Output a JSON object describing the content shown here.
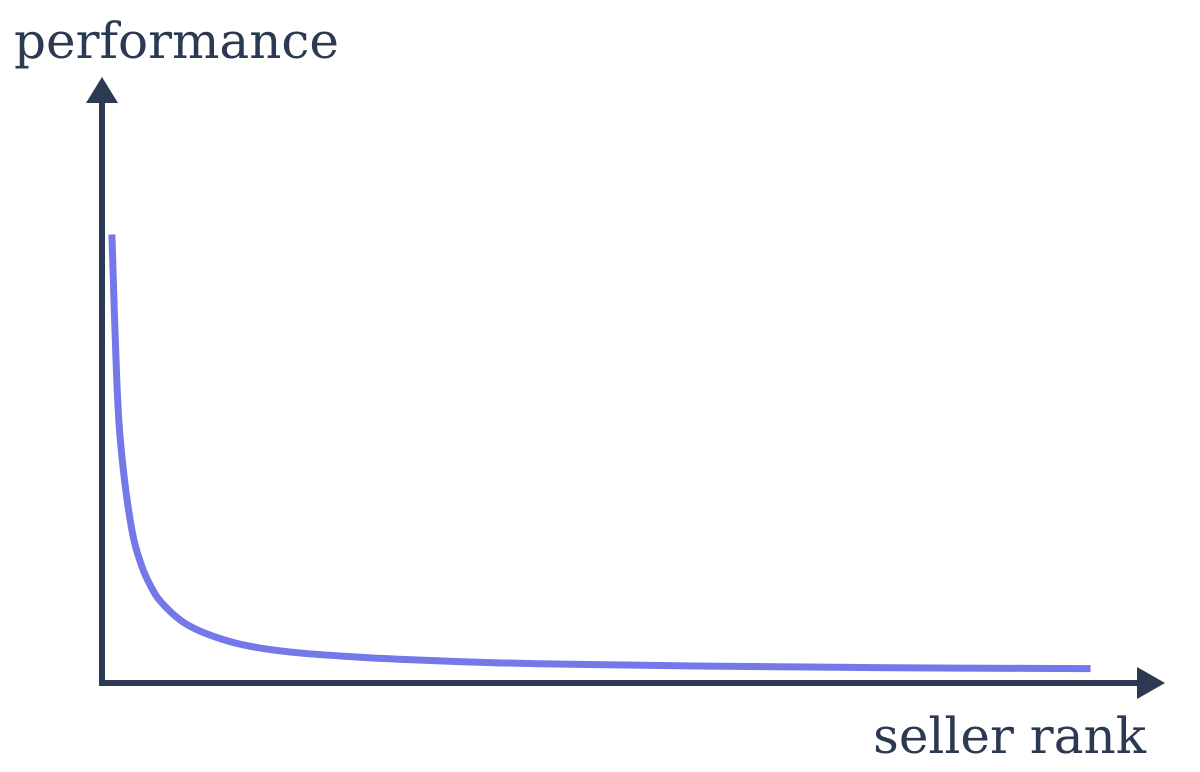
{
  "chart_data": {
    "type": "line",
    "title": "",
    "xlabel": "seller rank",
    "ylabel": "performance",
    "grid": false,
    "legend": "none",
    "ticks": "none",
    "series": [
      {
        "color": "#7478E8",
        "x": [
          1,
          1.5,
          2,
          3,
          4,
          5,
          6,
          8,
          10,
          13,
          16,
          20,
          25,
          30,
          40,
          50,
          60,
          70,
          80,
          90,
          100
        ],
        "y": [
          100,
          67.2,
          50.8,
          34.4,
          26.2,
          21.3,
          18.0,
          13.9,
          11.5,
          9.2,
          7.8,
          6.7,
          5.9,
          5.3,
          4.5,
          4.1,
          3.8,
          3.6,
          3.4,
          3.3,
          3.2
        ]
      }
    ],
    "xlim": [
      0,
      105
    ],
    "ylim": [
      0,
      130
    ]
  },
  "colors": {
    "axis": "#2B3A52",
    "curve": "#7478E8",
    "text": "#2B3A52"
  }
}
